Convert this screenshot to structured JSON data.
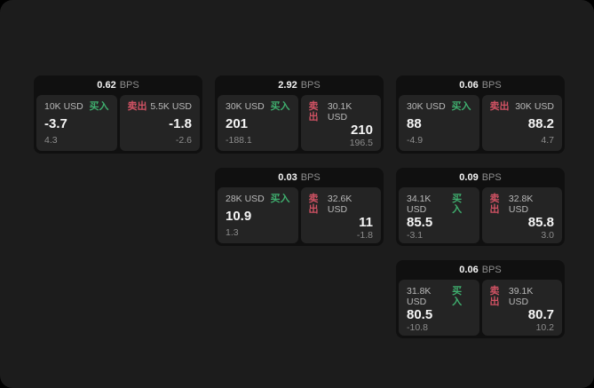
{
  "labels": {
    "bps_unit": "BPS",
    "buy": "买入",
    "sell": "卖出"
  },
  "colors": {
    "buy_green": "#3fae6e",
    "sell_red": "#d05263",
    "surface": "#1c1c1c",
    "card": "#101010",
    "panel": "#242424"
  },
  "cards": [
    {
      "bps": "0.62",
      "buy": {
        "amount": "10K USD",
        "value": "-3.7",
        "sub": "4.3"
      },
      "sell": {
        "amount": "5.5K USD",
        "value": "-1.8",
        "sub": "-2.6"
      }
    },
    {
      "bps": "2.92",
      "buy": {
        "amount": "30K USD",
        "value": "201",
        "sub": "-188.1"
      },
      "sell": {
        "amount": "30.1K USD",
        "value": "210",
        "sub": "196.5"
      }
    },
    {
      "bps": "0.06",
      "buy": {
        "amount": "30K USD",
        "value": "88",
        "sub": "-4.9"
      },
      "sell": {
        "amount": "30K USD",
        "value": "88.2",
        "sub": "4.7"
      }
    },
    {
      "bps": "0.03",
      "buy": {
        "amount": "28K USD",
        "value": "10.9",
        "sub": "1.3"
      },
      "sell": {
        "amount": "32.6K USD",
        "value": "11",
        "sub": "-1.8"
      }
    },
    {
      "bps": "0.09",
      "buy": {
        "amount": "34.1K USD",
        "value": "85.5",
        "sub": "-3.1"
      },
      "sell": {
        "amount": "32.8K USD",
        "value": "85.8",
        "sub": "3.0"
      }
    },
    {
      "bps": "0.06",
      "buy": {
        "amount": "31.8K USD",
        "value": "80.5",
        "sub": "-10.8"
      },
      "sell": {
        "amount": "39.1K USD",
        "value": "80.7",
        "sub": "10.2"
      }
    }
  ]
}
